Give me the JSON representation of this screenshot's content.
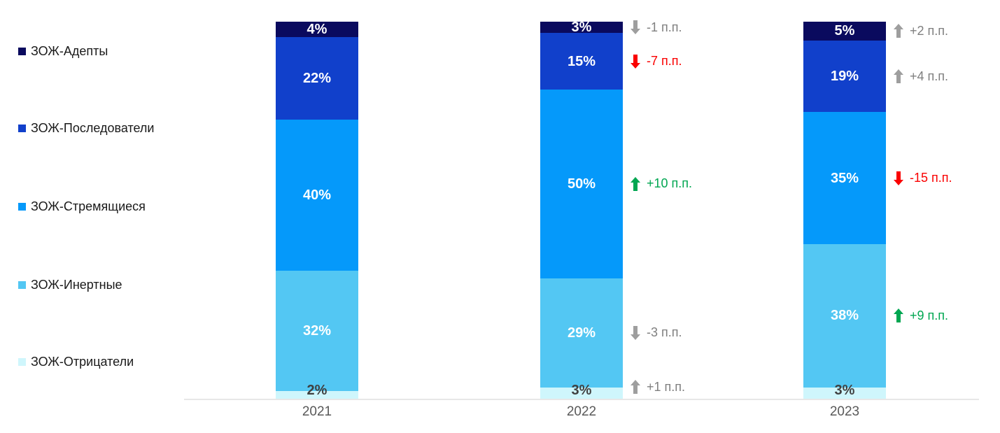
{
  "chart_data": {
    "type": "bar",
    "stacked": true,
    "orientation": "vertical",
    "categories": [
      "2021",
      "2022",
      "2023"
    ],
    "series": [
      {
        "name": "ЗОЖ-Адепты",
        "color": "#0A0A5E",
        "label_color": "#FFFFFF",
        "values": [
          4,
          3,
          5
        ]
      },
      {
        "name": "ЗОЖ-Последователи",
        "color": "#1140CB",
        "label_color": "#FFFFFF",
        "values": [
          22,
          15,
          19
        ]
      },
      {
        "name": "ЗОЖ-Стремящиеся",
        "color": "#0599FA",
        "label_color": "#FFFFFF",
        "values": [
          40,
          50,
          35
        ]
      },
      {
        "name": "ЗОЖ-Инертные",
        "color": "#53C7F3",
        "label_color": "#FFFFFF",
        "values": [
          32,
          29,
          38
        ]
      },
      {
        "name": "ЗОЖ-Отрицатели",
        "color": "#CFF6FC",
        "label_color": "#404040",
        "values": [
          2,
          3,
          3
        ]
      }
    ],
    "value_suffix": "%",
    "segment_labels": [
      [
        "4%",
        "3%",
        "5%"
      ],
      [
        "22%",
        "15%",
        "19%"
      ],
      [
        "40%",
        "50%",
        "35%"
      ],
      [
        "32%",
        "29%",
        "38%"
      ],
      [
        "2%",
        "3%",
        "3%"
      ]
    ],
    "deltas": [
      {
        "category": "2022",
        "series_index": 0,
        "text": "-1 п.п.",
        "direction": "down",
        "tone": "neutral"
      },
      {
        "category": "2022",
        "series_index": 1,
        "text": "-7 п.п.",
        "direction": "down",
        "tone": "negative"
      },
      {
        "category": "2022",
        "series_index": 2,
        "text": "+10 п.п.",
        "direction": "up",
        "tone": "positive"
      },
      {
        "category": "2022",
        "series_index": 3,
        "text": "-3 п.п.",
        "direction": "down",
        "tone": "neutral"
      },
      {
        "category": "2022",
        "series_index": 4,
        "text": "+1 п.п.",
        "direction": "up",
        "tone": "neutral"
      },
      {
        "category": "2023",
        "series_index": 0,
        "text": "+2 п.п.",
        "direction": "up",
        "tone": "neutral"
      },
      {
        "category": "2023",
        "series_index": 1,
        "text": "+4 п.п.",
        "direction": "up",
        "tone": "neutral"
      },
      {
        "category": "2023",
        "series_index": 2,
        "text": "-15 п.п.",
        "direction": "down",
        "tone": "negative"
      },
      {
        "category": "2023",
        "series_index": 3,
        "text": "+9 п.п.",
        "direction": "up",
        "tone": "positive"
      }
    ],
    "tone_colors": {
      "neutral": {
        "arrow": "#9E9E9E",
        "text": "#7F7F7F"
      },
      "negative": {
        "arrow": "#FA0000",
        "text": "#FA0000"
      },
      "positive": {
        "arrow": "#00A651",
        "text": "#00A651"
      }
    },
    "legend_position": "left",
    "grid": false,
    "baseline_color": "#E7E7E7",
    "ylim": [
      0,
      100
    ]
  }
}
